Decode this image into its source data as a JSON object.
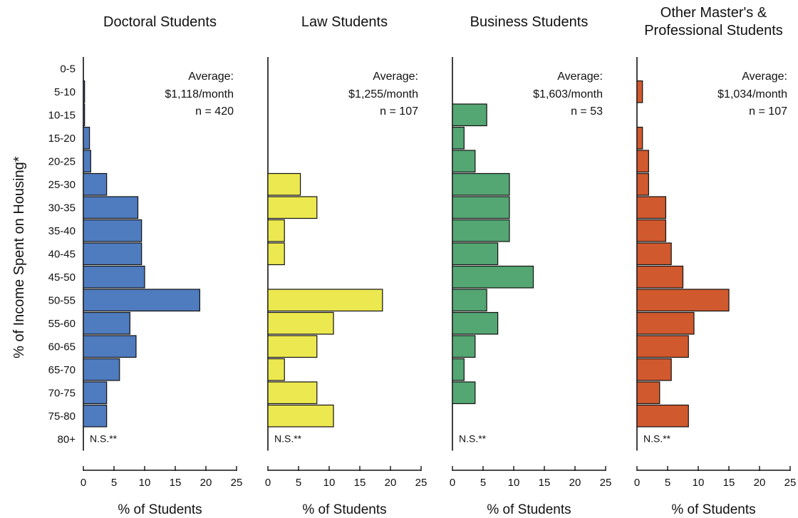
{
  "chart_data": {
    "type": "bar",
    "orientation": "horizontal",
    "ylabel": "% of Income Spent on Housing*",
    "categories": [
      "0-5",
      "5-10",
      "10-15",
      "15-20",
      "20-25",
      "25-30",
      "30-35",
      "35-40",
      "40-45",
      "45-50",
      "50-55",
      "55-60",
      "60-65",
      "65-70",
      "70-75",
      "75-80",
      "80+"
    ],
    "xlim": [
      0,
      25
    ],
    "xticks": [
      0,
      5,
      10,
      15,
      20,
      25
    ],
    "grid": false,
    "panels": [
      {
        "title": [
          "Doctoral Students"
        ],
        "xlabel": "% of Students",
        "color": "#4f7bbf",
        "average": "Average:",
        "amount": "$1,118/month",
        "n": "n = 420",
        "ns_label": "N.S.**",
        "values": [
          0,
          0.2,
          0.2,
          1.0,
          1.2,
          3.8,
          8.9,
          9.5,
          9.5,
          10.0,
          19.0,
          7.6,
          8.6,
          5.9,
          3.8,
          3.8,
          0
        ]
      },
      {
        "title": [
          "Law Students"
        ],
        "xlabel": "% of Students",
        "color": "#ece84f",
        "average": "Average:",
        "amount": "$1,255/month",
        "n": "n = 107",
        "ns_label": "N.S.**",
        "values": [
          0,
          0,
          0,
          0,
          0,
          5.3,
          8.0,
          2.7,
          2.7,
          0,
          18.7,
          10.7,
          8.0,
          2.7,
          8.0,
          10.7,
          0
        ]
      },
      {
        "title": [
          "Business Students"
        ],
        "xlabel": "% of Students",
        "color": "#54a673",
        "average": "Average:",
        "amount": "$1,603/month",
        "n": "n = 53",
        "ns_label": "N.S.**",
        "values": [
          0,
          0,
          5.6,
          1.9,
          3.7,
          9.3,
          9.3,
          9.3,
          7.4,
          13.2,
          5.6,
          7.4,
          3.7,
          1.9,
          3.7,
          0,
          0
        ]
      },
      {
        "title": [
          "Other Master's &",
          "Professional Students"
        ],
        "xlabel": "% of Students",
        "color": "#d1592e",
        "average": "Average:",
        "amount": "$1,034/month",
        "n": "n = 107",
        "ns_label": "N.S.**",
        "values": [
          0,
          0.9,
          0,
          0.9,
          1.9,
          1.9,
          4.7,
          4.7,
          5.6,
          7.5,
          15.0,
          9.3,
          8.4,
          5.6,
          3.7,
          8.4,
          0
        ]
      }
    ]
  }
}
